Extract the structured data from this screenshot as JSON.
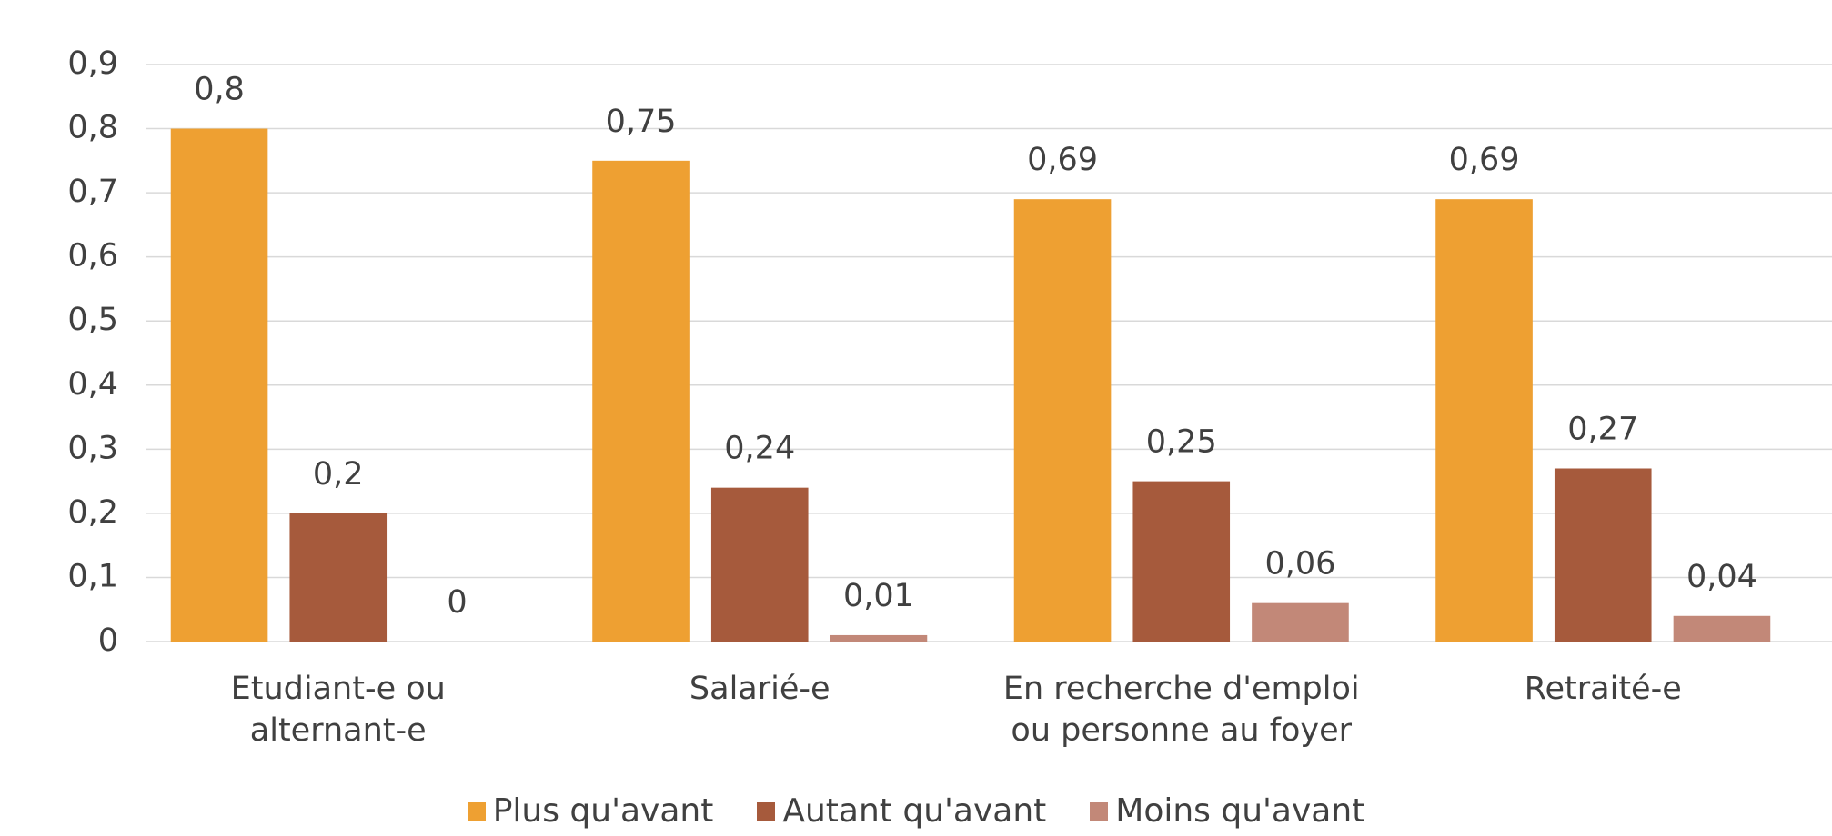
{
  "chart_data": {
    "type": "bar",
    "categories": [
      "Etudiant-e ou alternant-e",
      "Salarié-e",
      "En recherche d'emploi ou personne au foyer",
      "Retraité-e"
    ],
    "series": [
      {
        "name": "Plus qu'avant",
        "color": "#eea032",
        "values": [
          0.8,
          0.75,
          0.69,
          0.69
        ],
        "value_labels": [
          "0,8",
          "0,75",
          "0,69",
          "0,69"
        ]
      },
      {
        "name": "Autant qu'avant",
        "color": "#a65a3c",
        "values": [
          0.2,
          0.24,
          0.25,
          0.27
        ],
        "value_labels": [
          "0,2",
          "0,24",
          "0,25",
          "0,27"
        ]
      },
      {
        "name": "Moins qu'avant",
        "color": "#c28878",
        "values": [
          0,
          0.01,
          0.06,
          0.04
        ],
        "value_labels": [
          "0",
          "0,01",
          "0,06",
          "0,04"
        ]
      }
    ],
    "ylim": [
      0,
      0.9
    ],
    "yticks": [
      0,
      {
        "value": 0.1,
        "label": "0,1"
      },
      {
        "value": 0.2,
        "label": "0,2"
      },
      {
        "value": 0.3,
        "label": "0,3"
      },
      {
        "value": 0.4,
        "label": "0,4"
      },
      {
        "value": 0.5,
        "label": "0,5"
      },
      {
        "value": 0.6,
        "label": "0,6"
      },
      {
        "value": 0.7,
        "label": "0,7"
      },
      {
        "value": 0.8,
        "label": "0,8"
      },
      {
        "value": 0.9,
        "label": "0,9"
      }
    ],
    "grid": true,
    "legend": "bottom"
  }
}
